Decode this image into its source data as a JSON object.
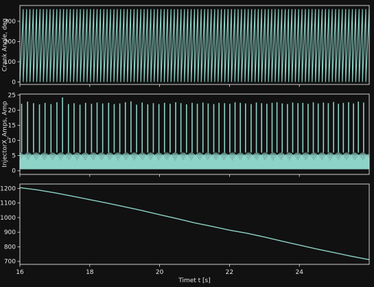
{
  "figure": {
    "background": "#111111",
    "axis_color": "#e6e6e6",
    "trace_color": "#8dd3c7"
  },
  "chart_data": [
    {
      "type": "line",
      "title": "",
      "xlabel": "",
      "ylabel": "Crank Angle, deg",
      "xlim": [
        16.0,
        26.0
      ],
      "ylim": [
        -12,
        378
      ],
      "yticks": [
        0,
        100,
        200,
        300
      ],
      "ytick_labels": [
        "0",
        "100",
        "200",
        "300"
      ],
      "xticks": [
        16,
        18,
        20,
        22,
        24
      ],
      "xtick_labels": [],
      "grid": false,
      "series": [
        {
          "description_free": true,
          "pattern": "sawtooth",
          "min": 0,
          "max": 360,
          "cycles": 104,
          "color": "#8dd3c7"
        }
      ]
    },
    {
      "type": "line",
      "title": "",
      "xlabel": "",
      "ylabel": "InjectorX_Amps, Amp",
      "xlim": [
        16.0,
        26.0
      ],
      "ylim": [
        -1.2,
        25.3
      ],
      "yticks": [
        0,
        5,
        10,
        15,
        20,
        25
      ],
      "ytick_labels": [
        "0",
        "5",
        "10",
        "15",
        "20",
        "25"
      ],
      "xticks": [
        16,
        18,
        20,
        22,
        24
      ],
      "xtick_labels": [],
      "grid": false,
      "series": [
        {
          "pattern": "pulses",
          "pulse_times": [
            16.05,
            16.22,
            16.39,
            16.56,
            16.72,
            16.89,
            17.06,
            17.22,
            17.39,
            17.55,
            17.72,
            17.88,
            18.05,
            18.21,
            18.37,
            18.54,
            18.7,
            18.86,
            19.02,
            19.18,
            19.34,
            19.5,
            19.66,
            19.82,
            19.98,
            20.14,
            20.3,
            20.46,
            20.61,
            20.77,
            20.93,
            21.08,
            21.24,
            21.39,
            21.55,
            21.7,
            21.86,
            22.01,
            22.16,
            22.31,
            22.46,
            22.62,
            22.77,
            22.92,
            23.07,
            23.22,
            23.36,
            23.51,
            23.66,
            23.81,
            23.96,
            24.1,
            24.25,
            24.4,
            24.54,
            24.69,
            24.83,
            24.98,
            25.12,
            25.26,
            25.41,
            25.55,
            25.69,
            25.84
          ],
          "pulse_peaks": [
            22.1,
            22.8,
            22.3,
            21.9,
            22.4,
            22.0,
            22.6,
            24.2,
            22.0,
            22.3,
            21.8,
            22.4,
            22.1,
            22.5,
            22.2,
            22.4,
            22.0,
            22.2,
            22.6,
            22.9,
            21.8,
            22.5,
            21.9,
            22.3,
            22.0,
            22.4,
            22.1,
            22.6,
            22.3,
            21.9,
            22.4,
            22.1,
            22.5,
            22.2,
            22.0,
            22.4,
            22.3,
            22.1,
            22.6,
            22.4,
            22.2,
            22.0,
            22.5,
            22.3,
            22.1,
            22.4,
            22.6,
            22.2,
            22.0,
            22.5,
            22.3,
            22.4,
            22.1,
            22.6,
            22.2,
            22.5,
            22.3,
            22.7,
            22.1,
            22.4,
            22.6,
            22.2,
            22.8,
            22.5
          ],
          "base_level": 0.5,
          "band_top": 6.0,
          "color": "#8dd3c7"
        }
      ]
    },
    {
      "type": "line",
      "title": "",
      "xlabel": "Timet t [s]",
      "ylabel": "",
      "xlim": [
        16.0,
        26.0
      ],
      "ylim": [
        680,
        1230
      ],
      "yticks": [
        700,
        800,
        900,
        1000,
        1100,
        1200
      ],
      "ytick_labels": [
        "700",
        "800",
        "900",
        "1000",
        "1100",
        "1200"
      ],
      "xticks": [
        16,
        18,
        20,
        22,
        24
      ],
      "xtick_labels": [
        "16",
        "18",
        "20",
        "22",
        "24"
      ],
      "grid": false,
      "series": [
        {
          "pattern": "line",
          "x": [
            16.0,
            16.5,
            17.0,
            17.5,
            18.0,
            18.5,
            19.0,
            19.5,
            20.0,
            20.5,
            21.0,
            21.5,
            22.0,
            22.5,
            23.0,
            23.5,
            24.0,
            24.5,
            25.0,
            25.5,
            26.0
          ],
          "y": [
            1205,
            1190,
            1170,
            1147,
            1123,
            1099,
            1074,
            1048,
            1020,
            993,
            964,
            940,
            914,
            893,
            867,
            839,
            812,
            785,
            760,
            735,
            712
          ],
          "color": "#8dd3c7"
        }
      ]
    }
  ]
}
